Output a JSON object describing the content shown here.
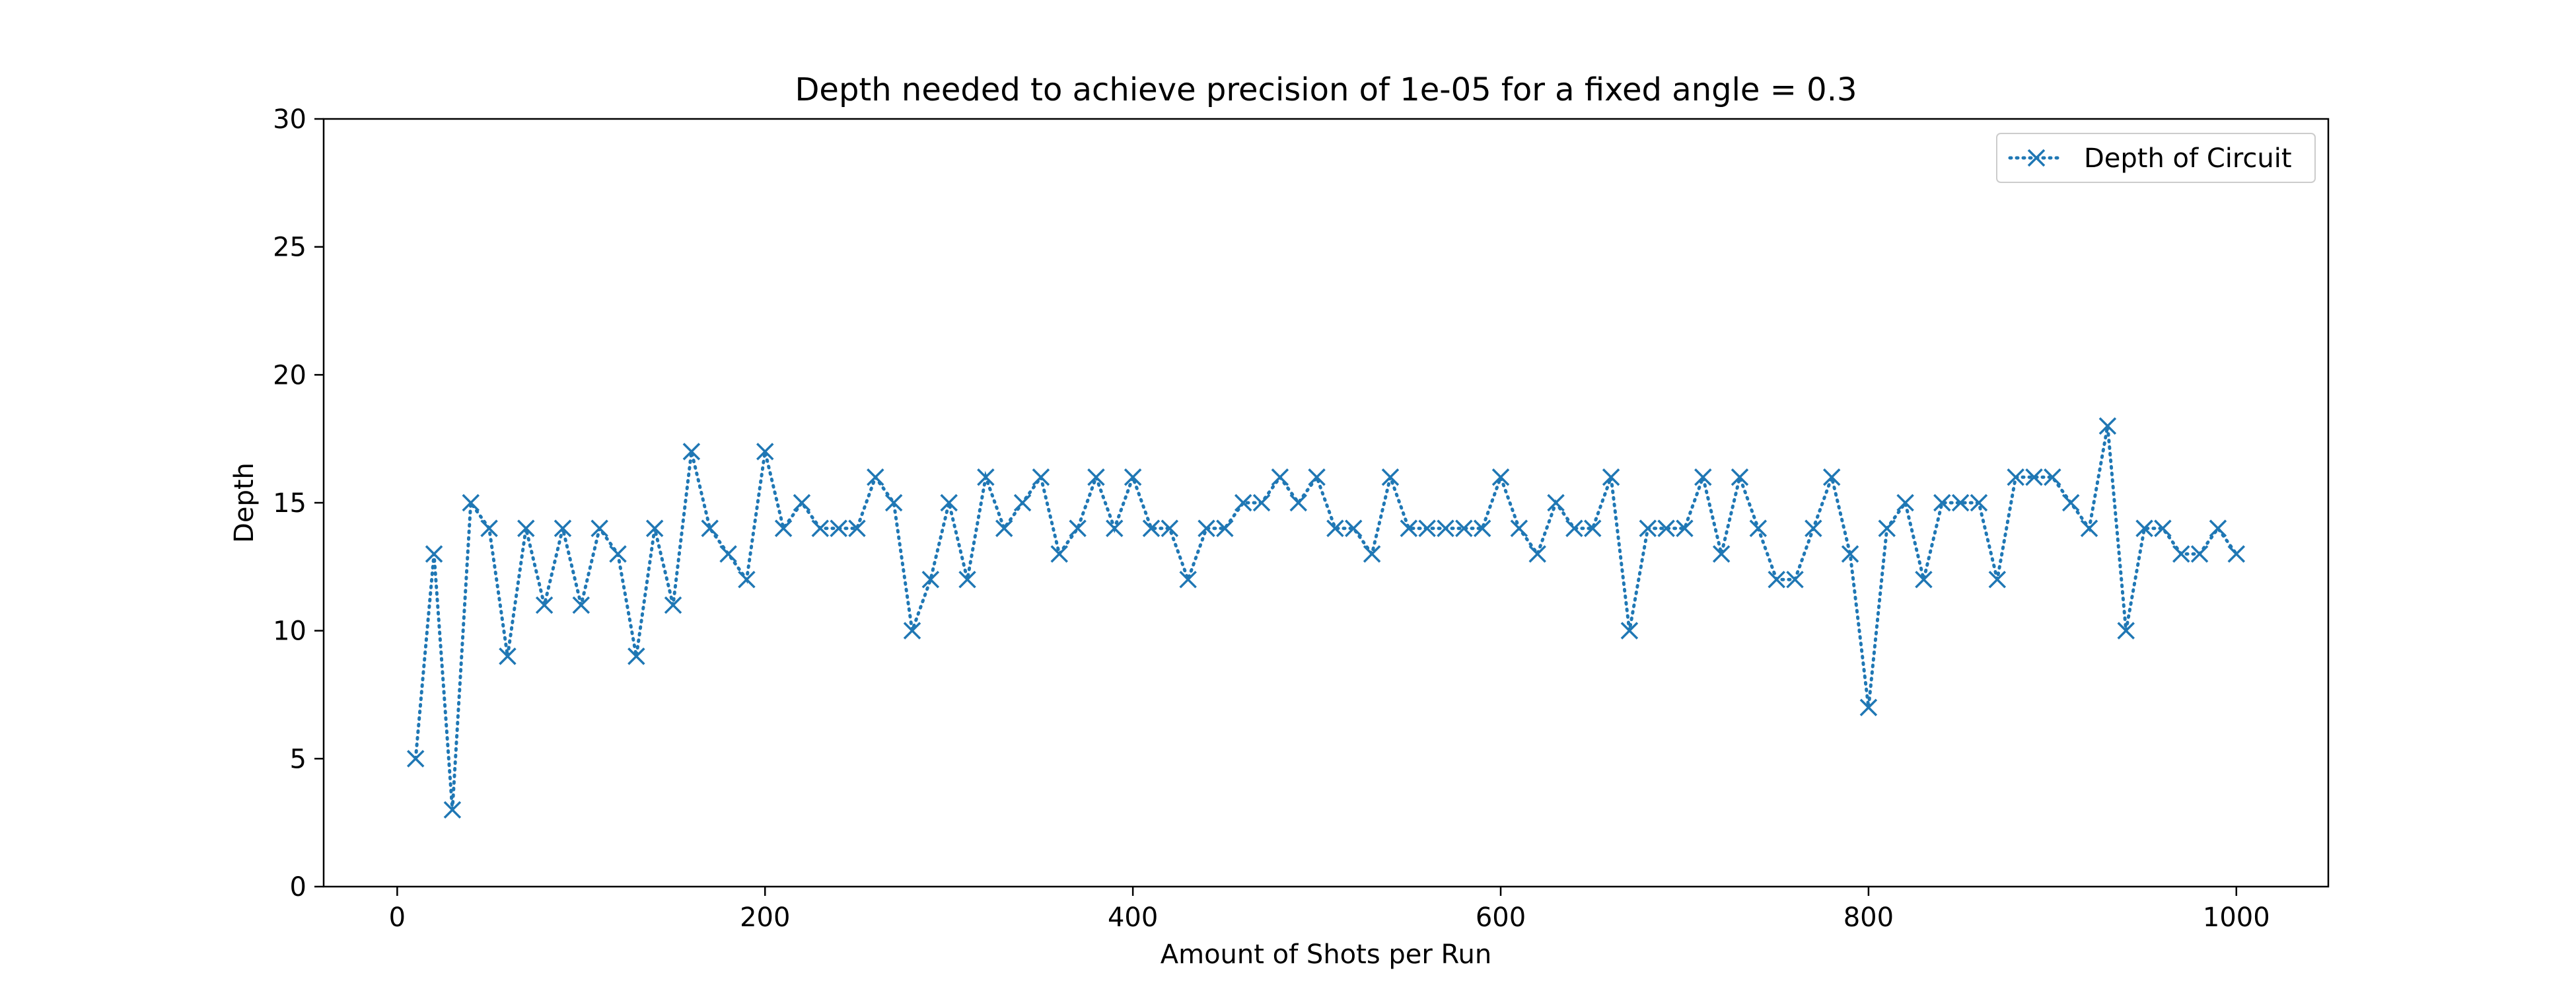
{
  "chart_data": {
    "type": "line",
    "title": "Depth needed to achieve precision of 1e-05 for a fixed angle = 0.3",
    "xlabel": "Amount of Shots per Run",
    "ylabel": "Depth",
    "xlim": [
      -40,
      1050
    ],
    "ylim": [
      0,
      30
    ],
    "x_ticks": [
      0,
      200,
      400,
      600,
      800,
      1000
    ],
    "y_ticks": [
      0,
      5,
      10,
      15,
      20,
      25,
      30
    ],
    "grid": false,
    "legend_position": "top-right",
    "line_style": "dotted",
    "marker": "x",
    "series": [
      {
        "name": "Depth of Circuit",
        "color": "#1f77b4",
        "x": [
          10,
          20,
          30,
          40,
          50,
          60,
          70,
          80,
          90,
          100,
          110,
          120,
          130,
          140,
          150,
          160,
          170,
          180,
          190,
          200,
          210,
          220,
          230,
          240,
          250,
          260,
          270,
          280,
          290,
          300,
          310,
          320,
          330,
          340,
          350,
          360,
          370,
          380,
          390,
          400,
          410,
          420,
          430,
          440,
          450,
          460,
          470,
          480,
          490,
          500,
          510,
          520,
          530,
          540,
          550,
          560,
          570,
          580,
          590,
          600,
          610,
          620,
          630,
          640,
          650,
          660,
          670,
          680,
          690,
          700,
          710,
          720,
          730,
          740,
          750,
          760,
          770,
          780,
          790,
          800,
          810,
          820,
          830,
          840,
          850,
          860,
          870,
          880,
          890,
          900,
          910,
          920,
          930,
          940,
          950,
          960,
          970,
          980,
          990,
          1000
        ],
        "values": [
          5,
          13,
          3,
          15,
          14,
          9,
          14,
          11,
          14,
          11,
          14,
          13,
          9,
          14,
          11,
          17,
          14,
          13,
          12,
          17,
          14,
          15,
          14,
          14,
          14,
          16,
          15,
          10,
          12,
          15,
          12,
          16,
          14,
          15,
          16,
          13,
          14,
          16,
          14,
          16,
          14,
          14,
          12,
          14,
          14,
          15,
          15,
          16,
          15,
          16,
          14,
          14,
          13,
          16,
          14,
          14,
          14,
          14,
          14,
          16,
          14,
          13,
          15,
          14,
          14,
          16,
          10,
          14,
          14,
          14,
          16,
          13,
          16,
          14,
          12,
          12,
          14,
          16,
          13,
          7,
          14,
          15,
          12,
          15,
          15,
          15,
          12,
          16,
          16,
          16,
          15,
          14,
          18,
          10,
          14,
          14,
          13,
          13,
          14,
          13
        ]
      }
    ]
  }
}
